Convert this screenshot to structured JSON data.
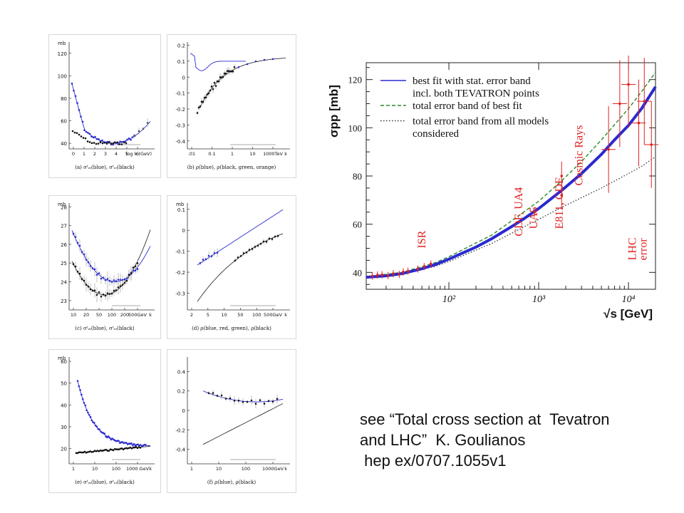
{
  "citation": {
    "line1": "see “Total cross section at  Tevatron",
    "line2": "and LHC”  K. Goulianos",
    "line3": " hep ex/0707.1055v1"
  },
  "colors": {
    "blue": "#2a2ad0",
    "black": "#111111",
    "red": "#e02020",
    "green": "#2a8a2a",
    "grid_bg": "#ffffff"
  },
  "chart_data": [
    {
      "id": "main",
      "type": "line",
      "xscale": "log",
      "xlabel": "√s [GeV]",
      "ylabel": "σpp [mb]",
      "xlim": [
        12,
        20000
      ],
      "ylim": [
        33,
        127
      ],
      "xticks": [
        {
          "v": 100,
          "label": "10²"
        },
        {
          "v": 1000,
          "label": "10³"
        },
        {
          "v": 10000,
          "label": "10⁴"
        }
      ],
      "yticks": [
        40,
        60,
        80,
        100,
        120
      ],
      "legend": [
        {
          "label": "best fit with stat. error band",
          "color": "#2a2ad0",
          "dash": "solid"
        },
        {
          "label": "incl. both TEVATRON points",
          "color": "#2a2ad0",
          "dash": "none"
        },
        {
          "label": "total error band of best fit",
          "color": "#2a8a2a",
          "dash": "dashed"
        },
        {
          "label": "total error band from all models",
          "color": "#333333",
          "dash": "dotted"
        },
        {
          "label": "considered",
          "color": "#333333",
          "dash": "none"
        }
      ],
      "series": [
        {
          "name": "best fit with stat. error band",
          "x": [
            12,
            20,
            30,
            50,
            70,
            100,
            200,
            300,
            500,
            700,
            1000,
            1800,
            3000,
            5000,
            7000,
            10000,
            14000,
            20000
          ],
          "y": [
            38,
            38.6,
            39.5,
            41.5,
            43.2,
            45.5,
            50.5,
            54,
            59,
            62.5,
            66.5,
            74,
            81,
            89,
            95,
            101,
            108,
            117
          ]
        },
        {
          "name": "total error band of best fit",
          "x": [
            12,
            30,
            70,
            100,
            300,
            1000,
            1800,
            3000,
            5000,
            10000,
            14000,
            20000
          ],
          "y": [
            38.2,
            40,
            44,
            46.5,
            55.5,
            69.5,
            78,
            86,
            95,
            108,
            115,
            123
          ]
        },
        {
          "name": "total error band from all models",
          "x": [
            12,
            30,
            70,
            100,
            300,
            1000,
            1800,
            3000,
            5000,
            10000,
            14000,
            20000
          ],
          "y": [
            37.8,
            39.5,
            42.5,
            44.5,
            52,
            62,
            67,
            71,
            75,
            81,
            84,
            88
          ]
        }
      ],
      "points": [
        {
          "x": 14,
          "y": 38.5
        },
        {
          "x": 16,
          "y": 38.9
        },
        {
          "x": 18,
          "y": 39
        },
        {
          "x": 21,
          "y": 38.7
        },
        {
          "x": 24,
          "y": 39.5
        },
        {
          "x": 28,
          "y": 39.2
        },
        {
          "x": 31,
          "y": 40.2
        },
        {
          "x": 35,
          "y": 40.5
        },
        {
          "x": 45,
          "y": 41.4
        },
        {
          "x": 53,
          "y": 42.4
        },
        {
          "x": 63,
          "y": 43.5
        },
        {
          "x": 900,
          "y": 65
        },
        {
          "x": 1800,
          "y": 72
        },
        {
          "x": 1800,
          "y": 80
        },
        {
          "x": 6000,
          "y": 91
        },
        {
          "x": 8000,
          "y": 110
        },
        {
          "x": 10000,
          "y": 118
        },
        {
          "x": 13000,
          "y": 102
        },
        {
          "x": 15000,
          "y": 111
        },
        {
          "x": 18000,
          "y": 93
        }
      ],
      "annotations": [
        {
          "label": "ISR",
          "x": 50,
          "y": 50
        },
        {
          "label": "CDF, UA4",
          "x": 600,
          "y": 55
        },
        {
          "label": "UA5",
          "x": 880,
          "y": 58
        },
        {
          "label": "E811, CDF",
          "x": 1700,
          "y": 58
        },
        {
          "label": "Cosmic Rays",
          "x": 2800,
          "y": 76
        },
        {
          "label": "LHC",
          "x": 11000,
          "y": 45
        },
        {
          "label": "error",
          "x": 14500,
          "y": 45
        }
      ]
    },
    {
      "id": "a",
      "type": "scatter",
      "caption": "(a) σᵗₒₜ(blue), σᵗₒₜ(black)",
      "ylabel": "mb",
      "yticks": [
        40,
        60,
        80,
        100,
        120
      ],
      "ylim": [
        35,
        130
      ],
      "xticks": [
        "0",
        "1",
        "2",
        "3",
        "4",
        "5",
        "6"
      ],
      "xlabel": "log  k (GeV)"
    },
    {
      "id": "b",
      "type": "scatter",
      "caption": "(b) ρ(blue), ρ(black, green, orange)",
      "yticks": [
        0.2,
        0.1,
        0,
        -0.1,
        -0.2,
        -0.3,
        -0.4
      ],
      "ylim": [
        -0.45,
        0.22
      ],
      "xticks": [
        ".01",
        "0.1",
        "1",
        "10",
        "1000TeV"
      ],
      "xlabel": "k"
    },
    {
      "id": "c",
      "type": "scatter",
      "caption": "(c) σᵗₒₜ(blue), σᵗₒₜ(black)",
      "ylabel": "mb",
      "yticks": [
        28,
        27,
        26,
        25,
        24,
        23
      ],
      "ylim": [
        22.5,
        28.2
      ],
      "xticks": [
        "10",
        "20",
        "50",
        "100",
        "200",
        "500GeV"
      ],
      "xlabel": "k"
    },
    {
      "id": "d",
      "type": "scatter",
      "caption": "(d) ρ(blue, red, green), ρ(black)",
      "ylabel": "mb",
      "yticks": [
        0.1,
        0,
        -0.1,
        -0.2,
        -0.3
      ],
      "ylim": [
        -0.38,
        0.13
      ],
      "xticks": [
        "2",
        "5",
        "10",
        "50",
        "100",
        "500GeV"
      ],
      "xlabel": "k"
    },
    {
      "id": "e",
      "type": "scatter",
      "caption": "(e) σᵗₒₜ(blue), σᵗₒₜ(black)",
      "ylabel": "mb",
      "yticks": [
        60,
        50,
        40,
        30,
        20
      ],
      "ylim": [
        13,
        62
      ],
      "xticks": [
        "1",
        "10",
        "100",
        "1000 GeV"
      ],
      "xlabel": "k"
    },
    {
      "id": "f",
      "type": "scatter",
      "caption": "(f) ρ(blue), ρ(black)",
      "yticks": [
        0.4,
        0.2,
        0,
        -0.2,
        -0.4
      ],
      "ylim": [
        -0.55,
        0.55
      ],
      "xticks": [
        "1",
        "10",
        "100",
        "1000GeV"
      ],
      "xlabel": "k"
    }
  ]
}
